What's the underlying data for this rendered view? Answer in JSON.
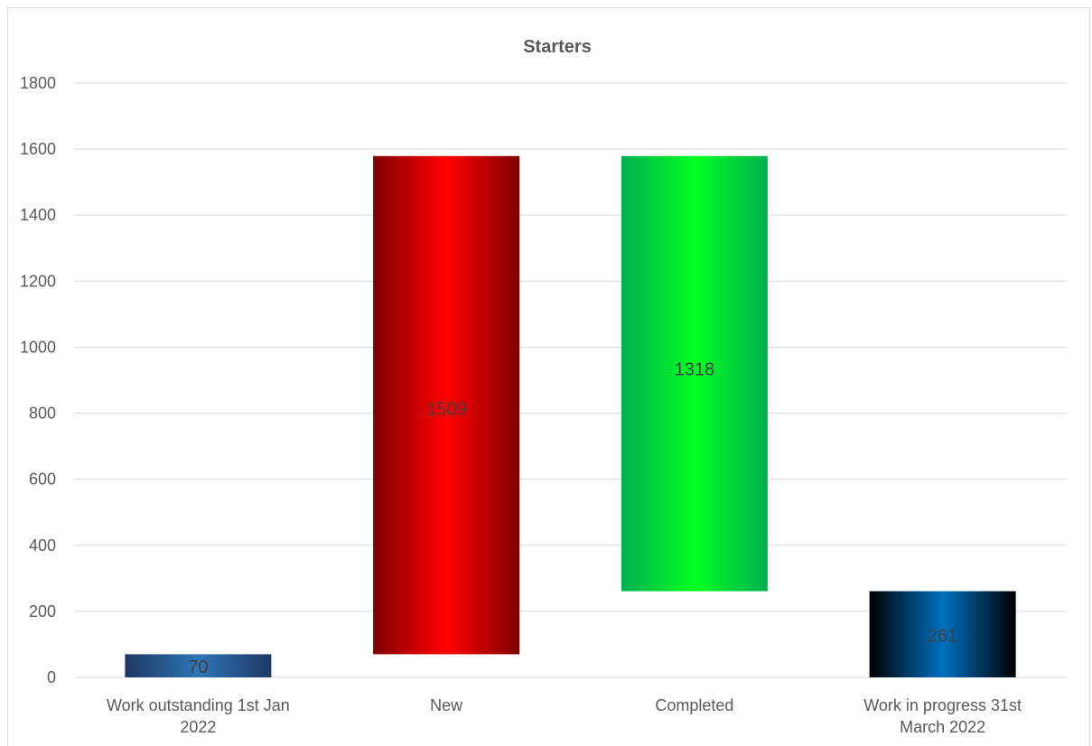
{
  "chart_data": {
    "type": "bar",
    "subtype": "waterfall",
    "title": "Starters",
    "categories": [
      [
        "Work outstanding 1st Jan",
        "2022"
      ],
      [
        "New"
      ],
      [
        "Completed"
      ],
      [
        "Work in progress 31st",
        "March 2022"
      ]
    ],
    "values": [
      70,
      1509,
      1318,
      261
    ],
    "bar_ranges": [
      [
        0,
        70
      ],
      [
        70,
        1579
      ],
      [
        261,
        1579
      ],
      [
        0,
        261
      ]
    ],
    "ylim": [
      0,
      1800
    ],
    "yticks": [
      0,
      200,
      400,
      600,
      800,
      1000,
      1200,
      1400,
      1600,
      1800
    ],
    "grid": true,
    "legend": "none",
    "colors": {
      "work_outstanding": [
        "#1f3864",
        "#2e75b6"
      ],
      "new": [
        "#7f0000",
        "#ff0000"
      ],
      "completed": [
        "#00b050",
        "#00ff21"
      ],
      "work_in_progress": [
        "#000000",
        "#0070c0"
      ],
      "gridline": "#d9d9d9",
      "text": "#595959"
    }
  }
}
